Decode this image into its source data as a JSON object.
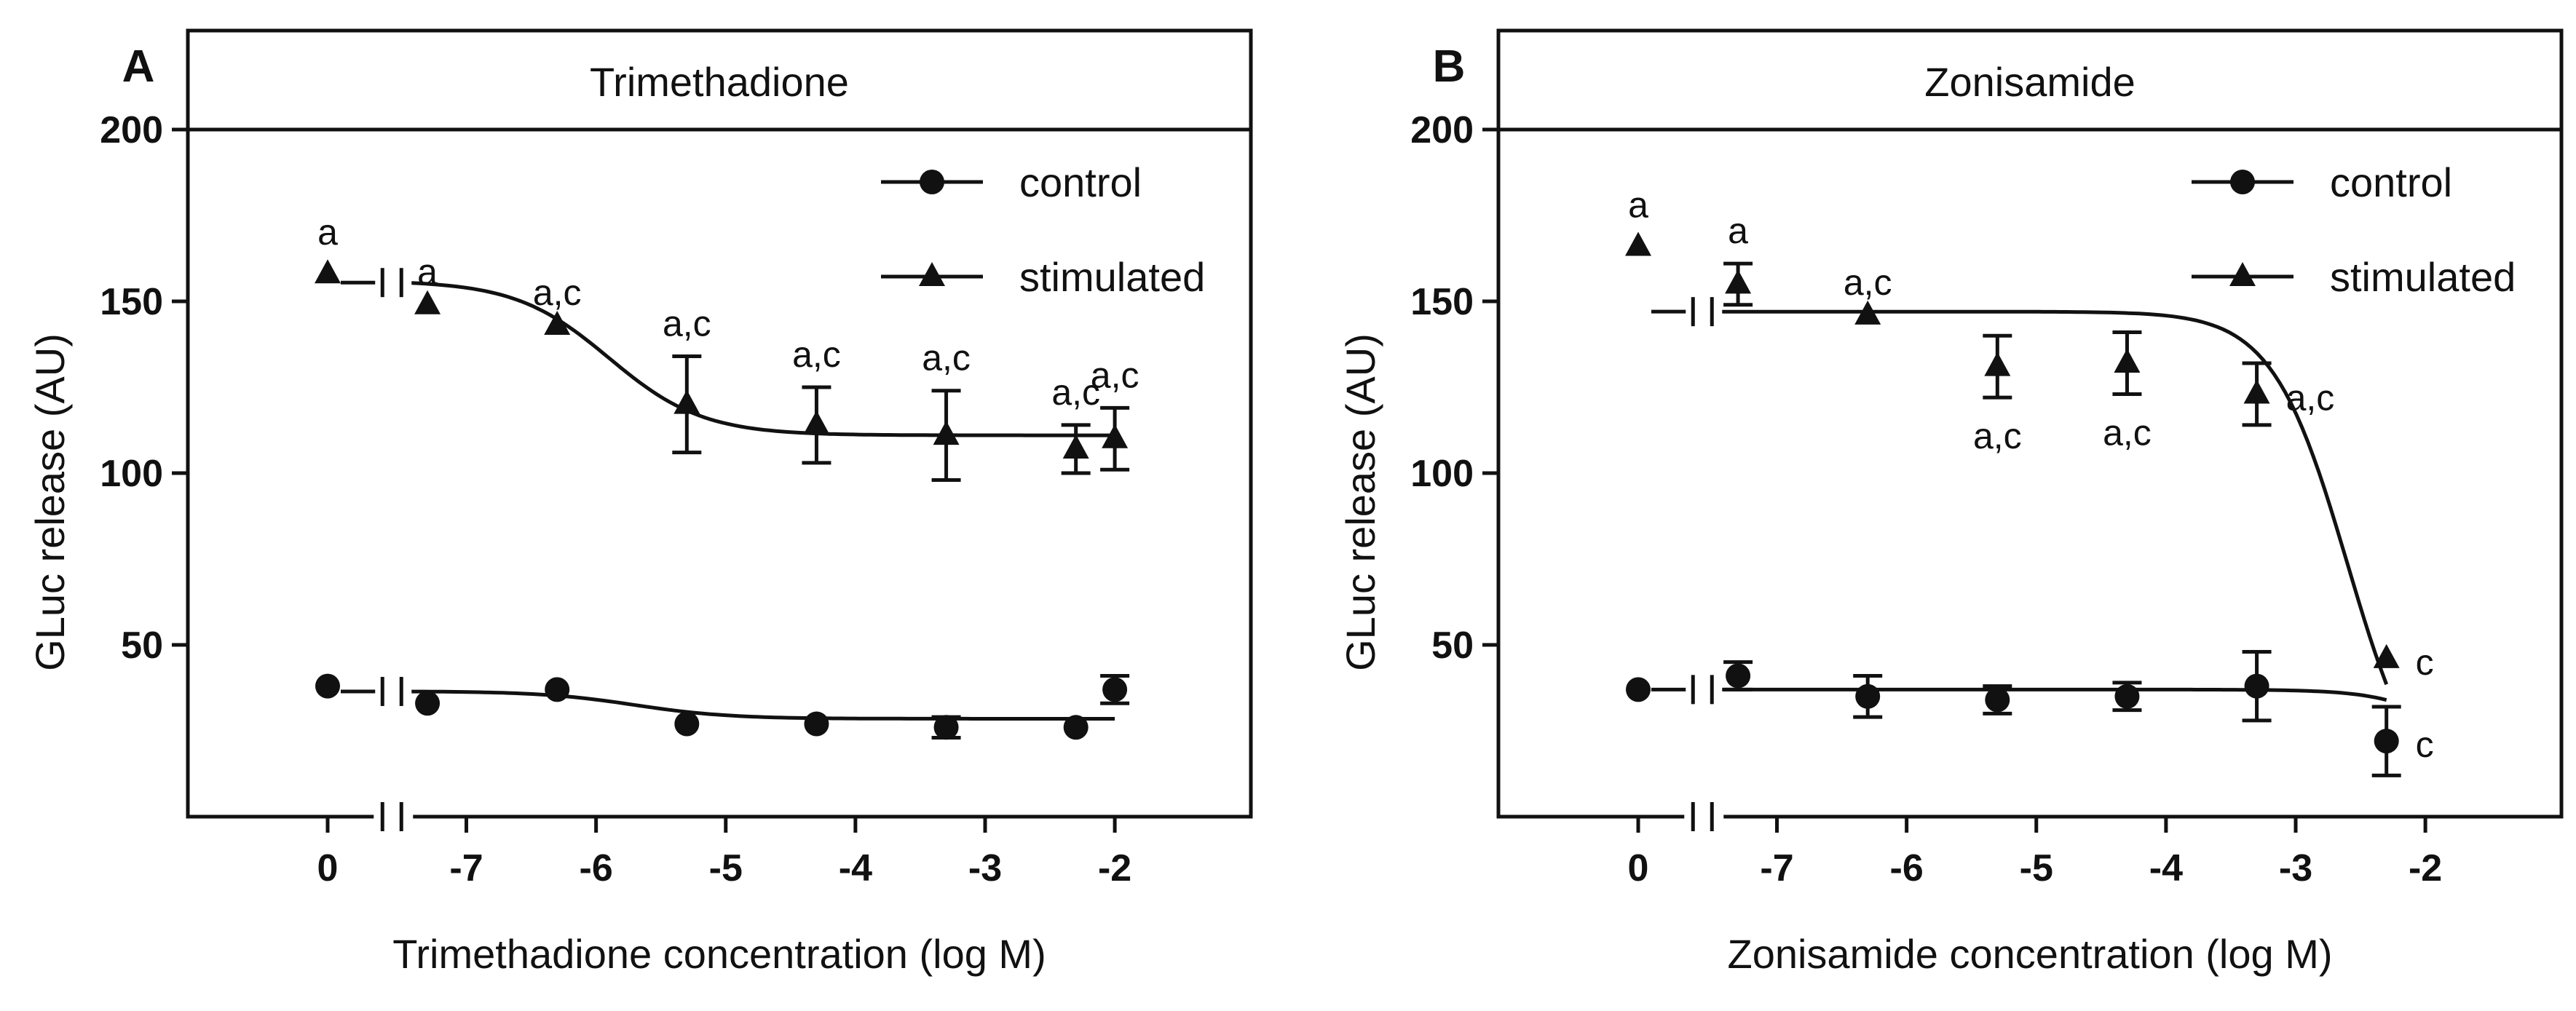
{
  "chart_data": [
    {
      "type": "scatter",
      "panel_letter": "A",
      "title": "Trimethadione",
      "xlabel": "Trimethadione concentration (log M)",
      "ylabel": "GLuc release (AU)",
      "x_ticks": [
        "0",
        "-7",
        "-6",
        "-5",
        "-4",
        "-3",
        "-2"
      ],
      "y_ticks": [
        "50",
        "100",
        "150",
        "200"
      ],
      "ylim": [
        0,
        200
      ],
      "xlim": [
        -8.5,
        -1.5
      ],
      "axis_break": "between 0 and -7",
      "legend": {
        "position": "top-right",
        "entries": [
          "control",
          "stimulated"
        ]
      },
      "series": [
        {
          "name": "control",
          "marker": "circle",
          "zero_point": {
            "x": "0",
            "y": 38
          },
          "points": [
            {
              "x": -7.3,
              "y": 33,
              "err": 0
            },
            {
              "x": -6.3,
              "y": 37,
              "err": 0
            },
            {
              "x": -5.3,
              "y": 27,
              "err": 0
            },
            {
              "x": -4.3,
              "y": 27,
              "err": 0
            },
            {
              "x": -3.3,
              "y": 26,
              "err": 3
            },
            {
              "x": -2.3,
              "y": 26,
              "err": 0
            },
            {
              "x": -2.0,
              "y": 37,
              "err": 4
            }
          ],
          "fit": {
            "top": 36.5,
            "bottom": 28.5,
            "ic50": -5.7,
            "hill": 1.2,
            "from": -7.5,
            "to": -2.0
          }
        },
        {
          "name": "stimulated",
          "marker": "triangle",
          "zero_point": {
            "x": "0",
            "y": 158,
            "label": "a"
          },
          "points": [
            {
              "x": -7.3,
              "y": 149,
              "err": 0,
              "label": "a"
            },
            {
              "x": -6.3,
              "y": 143,
              "err": 0,
              "label": "a,c"
            },
            {
              "x": -5.3,
              "y": 120,
              "err": 14,
              "label": "a,c"
            },
            {
              "x": -4.3,
              "y": 114,
              "err": 11,
              "label": "a,c"
            },
            {
              "x": -3.3,
              "y": 111,
              "err": 13,
              "label": "a,c"
            },
            {
              "x": -2.3,
              "y": 107,
              "err": 7,
              "label": "a,c"
            },
            {
              "x": -2.0,
              "y": 110,
              "err": 9,
              "label": "a,c"
            }
          ],
          "fit": {
            "top": 156,
            "bottom": 111,
            "ic50": -5.9,
            "hill": 1.2,
            "from": -7.5,
            "to": -2.0
          }
        }
      ]
    },
    {
      "type": "scatter",
      "panel_letter": "B",
      "title": "Zonisamide",
      "xlabel": "Zonisamide concentration (log M)",
      "ylabel": "GLuc release (AU)",
      "x_ticks": [
        "0",
        "-7",
        "-6",
        "-5",
        "-4",
        "-3",
        "-2"
      ],
      "y_ticks": [
        "50",
        "100",
        "150",
        "200"
      ],
      "ylim": [
        0,
        200
      ],
      "xlim": [
        -8.5,
        -1.5
      ],
      "axis_break": "between 0 and -7",
      "legend": {
        "position": "top-right",
        "entries": [
          "control",
          "stimulated"
        ]
      },
      "series": [
        {
          "name": "control",
          "marker": "circle",
          "zero_point": {
            "x": "0",
            "y": 37
          },
          "points": [
            {
              "x": -7.3,
              "y": 41,
              "err": 4
            },
            {
              "x": -6.3,
              "y": 35,
              "err": 6
            },
            {
              "x": -5.3,
              "y": 34,
              "err": 4
            },
            {
              "x": -4.3,
              "y": 35,
              "err": 4
            },
            {
              "x": -3.3,
              "y": 38,
              "err": 10
            },
            {
              "x": -2.3,
              "y": 22,
              "err": 10,
              "label": "c",
              "label_side": "right"
            }
          ],
          "fit": {
            "top": 37,
            "bottom": 0,
            "ic50": -1.6,
            "hill": 1.5,
            "from": -7.5,
            "to": -2.3
          }
        },
        {
          "name": "stimulated",
          "marker": "triangle",
          "zero_point": {
            "x": "0",
            "y": 166,
            "label": "a"
          },
          "points": [
            {
              "x": -7.3,
              "y": 155,
              "err": 6,
              "label": "a"
            },
            {
              "x": -6.3,
              "y": 146,
              "err": 0,
              "label": "a,c"
            },
            {
              "x": -5.3,
              "y": 131,
              "err": 9,
              "label": "a,c",
              "label_side": "below"
            },
            {
              "x": -4.3,
              "y": 132,
              "err": 9,
              "label": "a,c",
              "label_side": "below"
            },
            {
              "x": -3.3,
              "y": 123,
              "err": 9,
              "label": "a,c",
              "label_side": "right"
            },
            {
              "x": -2.3,
              "y": 46,
              "err": 0,
              "label": "c",
              "label_side": "right"
            }
          ],
          "fit": {
            "top": 147,
            "bottom": 0,
            "ic50": -2.6,
            "hill": 1.5,
            "from": -7.5,
            "to": -2.3
          }
        }
      ]
    }
  ]
}
